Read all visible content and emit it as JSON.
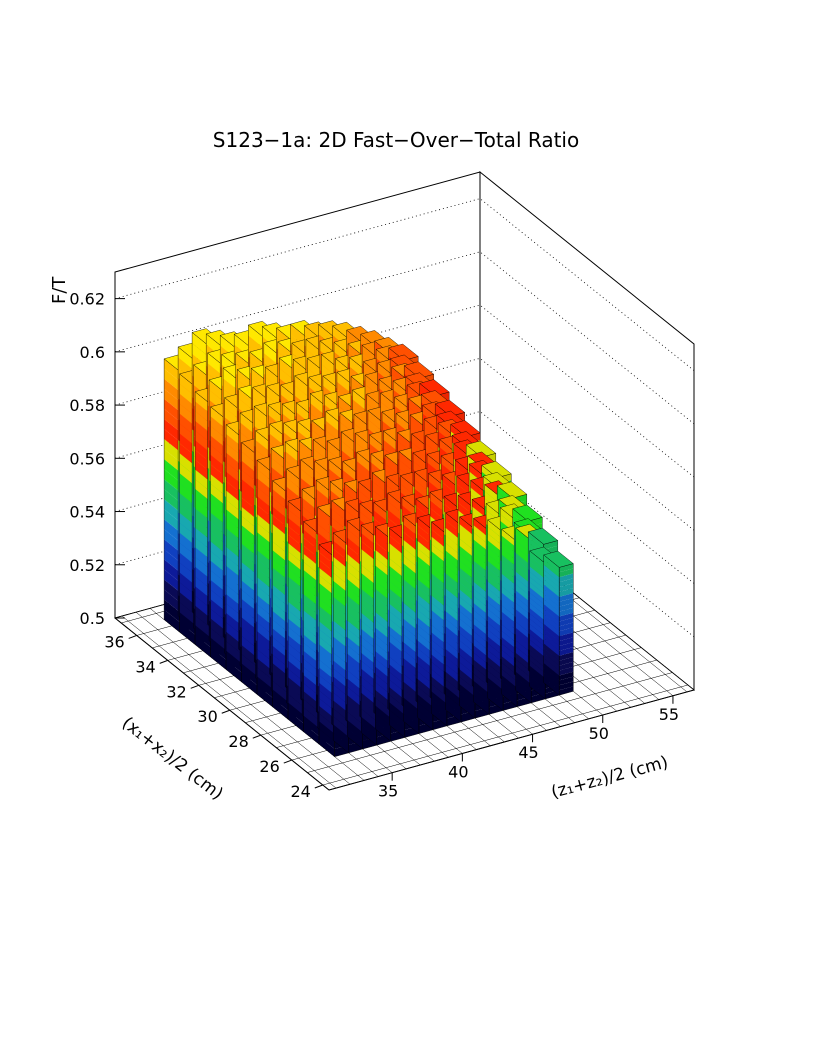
{
  "chart_data": {
    "type": "lego3d",
    "title": "S123−1a: 2D Fast−Over−Total Ratio",
    "zlabel": "F/T",
    "xlabel": "(z₁+z₂)/2 (cm)",
    "ylabel": "(x₁+x₂)/2 (cm)",
    "z_range": [
      0.5,
      0.63
    ],
    "x_range": [
      30.5,
      56.5
    ],
    "y_range": [
      23.6,
      37.4
    ],
    "z_ticks": [
      "0.5",
      "0.52",
      "0.54",
      "0.56",
      "0.58",
      "0.6",
      "0.62"
    ],
    "x_ticks": [
      "35",
      "40",
      "45",
      "50",
      "55"
    ],
    "y_ticks": [
      "24",
      "26",
      "28",
      "30",
      "32",
      "34",
      "36"
    ],
    "x_bins": [
      33.5,
      34.5,
      35.5,
      36.5,
      37.5,
      38.5,
      39.5,
      40.5,
      41.5,
      42.5,
      43.5,
      44.5,
      45.5,
      46.5,
      47.5,
      48.5,
      49.5
    ],
    "y_bins": [
      26,
      27,
      28,
      29,
      30,
      31,
      32,
      33,
      34,
      35,
      36
    ],
    "values": [
      [
        0.575,
        0.578,
        0.581,
        0.578,
        0.576,
        0.574,
        0.577,
        0.575,
        0.572,
        0.574,
        0.571,
        0.569,
        0.567,
        0.562,
        0.561,
        0.551,
        0.548
      ],
      [
        0.579,
        0.583,
        0.584,
        0.582,
        0.58,
        0.579,
        0.581,
        0.578,
        0.576,
        0.577,
        0.574,
        0.573,
        0.57,
        0.567,
        0.564,
        0.557,
        0.552
      ],
      [
        0.582,
        0.585,
        0.587,
        0.585,
        0.583,
        0.582,
        0.584,
        0.581,
        0.58,
        0.58,
        0.578,
        0.576,
        0.574,
        0.571,
        0.568,
        0.561,
        0.556
      ],
      [
        0.585,
        0.588,
        0.59,
        0.588,
        0.587,
        0.585,
        0.587,
        0.585,
        0.583,
        0.583,
        0.581,
        0.579,
        0.577,
        0.574,
        0.571,
        0.565,
        0.56
      ],
      [
        0.588,
        0.591,
        0.592,
        0.591,
        0.59,
        0.588,
        0.59,
        0.588,
        0.586,
        0.586,
        0.584,
        0.582,
        0.58,
        0.577,
        0.574,
        0.568,
        0.563
      ],
      [
        0.59,
        0.593,
        0.594,
        0.593,
        0.592,
        0.591,
        0.593,
        0.591,
        0.589,
        0.589,
        0.587,
        0.585,
        0.583,
        0.58,
        0.577,
        0.571,
        0.566
      ],
      [
        0.592,
        0.595,
        0.596,
        0.595,
        0.594,
        0.593,
        0.595,
        0.593,
        0.591,
        0.592,
        0.589,
        0.588,
        0.585,
        0.583,
        0.579,
        0.574,
        0.569
      ],
      [
        0.594,
        0.596,
        0.598,
        0.597,
        0.596,
        0.595,
        0.597,
        0.595,
        0.594,
        0.594,
        0.591,
        0.59,
        0.587,
        0.585,
        0.582,
        0.577,
        0.572
      ],
      [
        0.595,
        0.598,
        0.601,
        0.599,
        0.598,
        0.597,
        0.599,
        0.597,
        0.596,
        0.596,
        0.593,
        0.592,
        0.589,
        0.587,
        0.584,
        0.579,
        0.575
      ],
      [
        0.597,
        0.599,
        0.602,
        0.6,
        0.599,
        0.598,
        0.6,
        0.599,
        0.597,
        0.597,
        0.595,
        0.593,
        0.591,
        0.589,
        0.586,
        0.581,
        0.577
      ],
      [
        0.598,
        0.601,
        0.605,
        0.603,
        0.601,
        0.6,
        0.602,
        0.6,
        0.598,
        0.598,
        0.596,
        0.595,
        0.593,
        0.59,
        0.587,
        0.583,
        0.579
      ]
    ],
    "palette": [
      "#000033",
      "#0a0a55",
      "#0d1a99",
      "#1040c0",
      "#1470d0",
      "#18a8b0",
      "#18c060",
      "#20e020",
      "#d8e000",
      "#ff2800",
      "#ff5000",
      "#ff8a00",
      "#ffbf00",
      "#ffe800",
      "#fff890",
      "#ffffff"
    ],
    "grid": "dotted"
  }
}
